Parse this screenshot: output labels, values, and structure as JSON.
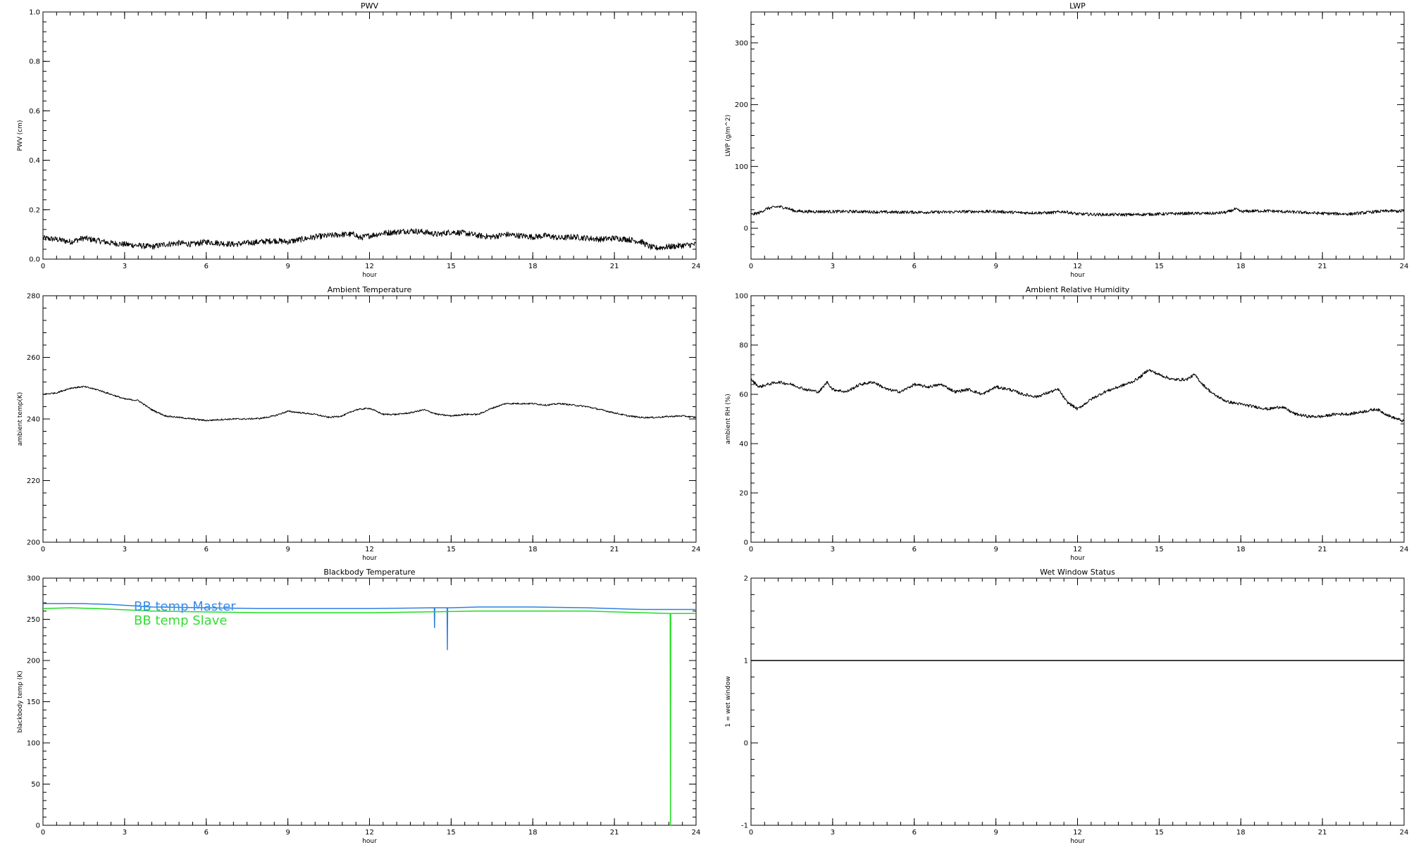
{
  "chart_data": [
    {
      "type": "line",
      "title": "PWV",
      "xlabel": "hour",
      "ylabel": "PWV (cm)",
      "xlim": [
        0,
        24
      ],
      "ylim": [
        0,
        1.0
      ],
      "xticks": [
        0,
        3,
        6,
        9,
        12,
        15,
        18,
        21,
        24
      ],
      "yticks": [
        0.0,
        0.2,
        0.4,
        0.6,
        0.8,
        1.0
      ],
      "ytick_labels": [
        "0.0",
        "0.2",
        "0.4",
        "0.6",
        "0.8",
        "1.0"
      ],
      "series": [
        {
          "color": "#000000",
          "noise": 0.012,
          "x": [
            0,
            0.5,
            1.0,
            1.5,
            2.0,
            2.5,
            3.0,
            3.5,
            4.0,
            4.5,
            5.0,
            5.5,
            6.0,
            6.5,
            7.0,
            7.5,
            8.0,
            8.5,
            9.0,
            9.5,
            10.0,
            10.5,
            11.0,
            11.5,
            11.6,
            12.0,
            12.5,
            13.0,
            13.5,
            14.0,
            14.5,
            15.0,
            15.5,
            16.0,
            16.5,
            17.0,
            17.5,
            18.0,
            18.5,
            19.0,
            19.5,
            20.0,
            20.5,
            21.0,
            21.5,
            22.0,
            22.3,
            22.5,
            23.0,
            23.5,
            24.0
          ],
          "y": [
            0.085,
            0.08,
            0.07,
            0.085,
            0.075,
            0.065,
            0.06,
            0.055,
            0.05,
            0.06,
            0.065,
            0.06,
            0.07,
            0.065,
            0.06,
            0.065,
            0.07,
            0.075,
            0.07,
            0.08,
            0.09,
            0.095,
            0.1,
            0.1,
            0.085,
            0.095,
            0.105,
            0.11,
            0.115,
            0.11,
            0.1,
            0.11,
            0.105,
            0.095,
            0.09,
            0.1,
            0.095,
            0.09,
            0.095,
            0.085,
            0.09,
            0.085,
            0.08,
            0.085,
            0.08,
            0.07,
            0.05,
            0.045,
            0.05,
            0.055,
            0.06
          ]
        }
      ]
    },
    {
      "type": "line",
      "title": "LWP",
      "xlabel": "hour",
      "ylabel": "LWP (g/m^2)",
      "xlim": [
        0,
        24
      ],
      "ylim": [
        -50,
        350
      ],
      "xticks": [
        0,
        3,
        6,
        9,
        12,
        15,
        18,
        21,
        24
      ],
      "yticks": [
        0,
        100,
        200,
        300
      ],
      "ytick_labels": [
        "0",
        "100",
        "200",
        "300"
      ],
      "series": [
        {
          "color": "#000000",
          "noise": 2.5,
          "x": [
            0,
            0.3,
            0.6,
            1.0,
            1.3,
            1.6,
            2.0,
            3.0,
            4.0,
            5.0,
            6.0,
            7.0,
            8.0,
            9.0,
            10.0,
            11.0,
            11.5,
            12.0,
            13.0,
            14.0,
            15.0,
            16.0,
            17.0,
            17.5,
            17.8,
            18.0,
            18.5,
            19.0,
            19.5,
            20.0,
            21.0,
            22.0,
            22.5,
            23.0,
            23.5,
            24.0
          ],
          "y": [
            22,
            25,
            32,
            35,
            33,
            28,
            27,
            27,
            27,
            26,
            26,
            26,
            27,
            27,
            25,
            25,
            27,
            23,
            22,
            22,
            23,
            24,
            24,
            26,
            31,
            27,
            28,
            28,
            27,
            26,
            24,
            23,
            25,
            27,
            28,
            27
          ]
        }
      ]
    },
    {
      "type": "line",
      "title": "Ambient Temperature",
      "xlabel": "hour",
      "ylabel": "ambient temp(K)",
      "xlim": [
        0,
        24
      ],
      "ylim": [
        200,
        280
      ],
      "xticks": [
        0,
        3,
        6,
        9,
        12,
        15,
        18,
        21,
        24
      ],
      "yticks": [
        200,
        220,
        240,
        260,
        280
      ],
      "ytick_labels": [
        "200",
        "220",
        "240",
        "260",
        "280"
      ],
      "series": [
        {
          "color": "#000000",
          "noise": 0.25,
          "x": [
            0,
            0.5,
            1.0,
            1.5,
            2.0,
            2.5,
            3.0,
            3.5,
            4.0,
            4.5,
            5.0,
            5.5,
            6.0,
            6.5,
            7.0,
            7.5,
            8.0,
            8.5,
            9.0,
            9.5,
            10.0,
            10.5,
            11.0,
            11.5,
            12.0,
            12.5,
            13.0,
            13.5,
            14.0,
            14.5,
            15.0,
            15.5,
            16.0,
            16.5,
            17.0,
            17.5,
            18.0,
            18.5,
            19.0,
            19.5,
            20.0,
            20.5,
            21.0,
            21.5,
            22.0,
            22.5,
            23.0,
            23.5,
            24.0
          ],
          "y": [
            248,
            248.5,
            250,
            250.5,
            249.5,
            248,
            246.5,
            246,
            243,
            241,
            240.5,
            240,
            239.5,
            239.8,
            240,
            240,
            240.2,
            241,
            242.5,
            242,
            241.5,
            240.5,
            241,
            243,
            243.5,
            241.5,
            241.5,
            242,
            243,
            241.5,
            241,
            241.5,
            241.5,
            243.5,
            245,
            245,
            245,
            244.5,
            245,
            244.5,
            244,
            243,
            242,
            241,
            240.5,
            240.5,
            240.8,
            241,
            240.5
          ]
        }
      ]
    },
    {
      "type": "line",
      "title": "Ambient Relative Humidity",
      "xlabel": "hour",
      "ylabel": "ambient RH (%)",
      "xlim": [
        0,
        24
      ],
      "ylim": [
        0,
        100
      ],
      "xticks": [
        0,
        3,
        6,
        9,
        12,
        15,
        18,
        21,
        24
      ],
      "yticks": [
        0,
        20,
        40,
        60,
        80,
        100
      ],
      "ytick_labels": [
        "0",
        "20",
        "40",
        "60",
        "80",
        "100"
      ],
      "series": [
        {
          "color": "#000000",
          "noise": 0.6,
          "x": [
            0,
            0.3,
            0.6,
            1.0,
            1.5,
            2.0,
            2.5,
            2.8,
            3.0,
            3.5,
            4.0,
            4.5,
            5.0,
            5.5,
            6.0,
            6.5,
            7.0,
            7.5,
            8.0,
            8.5,
            9.0,
            9.5,
            10.0,
            10.5,
            11.0,
            11.3,
            11.6,
            12.0,
            12.5,
            13.0,
            13.5,
            14.0,
            14.3,
            14.6,
            15.0,
            15.5,
            16.0,
            16.3,
            16.6,
            17.0,
            17.5,
            18.0,
            18.5,
            19.0,
            19.5,
            20.0,
            20.5,
            21.0,
            21.5,
            22.0,
            22.5,
            23.0,
            23.5,
            24.0
          ],
          "y": [
            66,
            63,
            64,
            65,
            64,
            62,
            61,
            65,
            62,
            61,
            64,
            65,
            62,
            61,
            64,
            63,
            64,
            61,
            62,
            60,
            63,
            62,
            60,
            59,
            61,
            62,
            57,
            54,
            58,
            61,
            63,
            65,
            67,
            70,
            68,
            66,
            66,
            68,
            64,
            60,
            57,
            56,
            55,
            54,
            55,
            52,
            51,
            51,
            52,
            52,
            53,
            54,
            51,
            49
          ]
        }
      ]
    },
    {
      "type": "line",
      "title": "Blackbody Temperature",
      "xlabel": "hour",
      "ylabel": "blackbody temp (K)",
      "xlim": [
        0,
        24
      ],
      "ylim": [
        0,
        300
      ],
      "xticks": [
        0,
        3,
        6,
        9,
        12,
        15,
        18,
        21,
        24
      ],
      "yticks": [
        0,
        50,
        100,
        150,
        200,
        250,
        300
      ],
      "ytick_labels": [
        "0",
        "50",
        "100",
        "150",
        "200",
        "250",
        "300"
      ],
      "legend": [
        {
          "label": "BB temp Master",
          "color": "#3a8ee6"
        },
        {
          "label": "BB temp Slave",
          "color": "#33dd33"
        }
      ],
      "series": [
        {
          "name": "BB temp Master",
          "color": "#2f80e0",
          "noise": 0,
          "x": [
            0,
            1.5,
            2.5,
            4.0,
            6.0,
            8.0,
            10.0,
            12.0,
            14.38,
            14.39,
            14.4,
            14.5,
            14.85,
            14.86,
            14.87,
            15.0,
            16.0,
            18.0,
            20.0,
            22.0,
            24.0
          ],
          "y": [
            269,
            269,
            268,
            265,
            264,
            263,
            263,
            263,
            264,
            240,
            264,
            264,
            264,
            213,
            264,
            264,
            265,
            265,
            264,
            262,
            262
          ]
        },
        {
          "name": "BB temp Slave",
          "color": "#22dd22",
          "noise": 0,
          "x": [
            0,
            1.0,
            2.0,
            4.0,
            6.0,
            8.0,
            10.0,
            12.0,
            14.0,
            16.0,
            18.0,
            20.0,
            22.0,
            23.05,
            23.06,
            23.07,
            24.0
          ],
          "y": [
            263,
            264,
            263,
            260,
            259,
            258,
            258,
            258,
            259,
            260,
            260,
            260,
            258,
            257,
            0,
            257,
            257
          ]
        }
      ]
    },
    {
      "type": "line",
      "title": "Wet Window Status",
      "xlabel": "hour",
      "ylabel": "1 = wet window",
      "xlim": [
        0,
        24
      ],
      "ylim": [
        -1,
        2
      ],
      "xticks": [
        0,
        3,
        6,
        9,
        12,
        15,
        18,
        21,
        24
      ],
      "yticks": [
        -1,
        0,
        1,
        2
      ],
      "ytick_labels": [
        "-1",
        "0",
        "1",
        "2"
      ],
      "series": [
        {
          "color": "#000000",
          "noise": 0,
          "x": [
            0,
            24
          ],
          "y": [
            1,
            1
          ]
        }
      ]
    }
  ]
}
